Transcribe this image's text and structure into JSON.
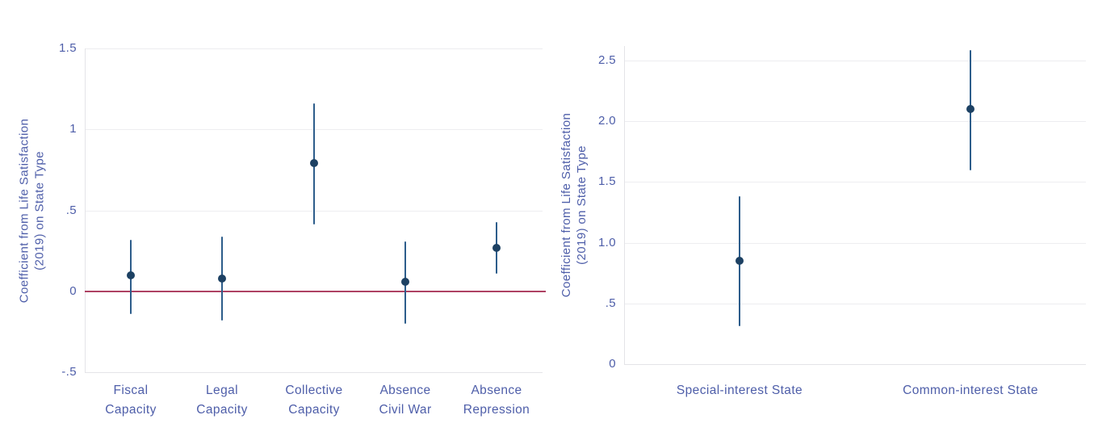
{
  "figure": {
    "background_color": "#ffffff"
  },
  "colors": {
    "label_text": "#4e5ea9",
    "point": "#1d4163",
    "ci_line": "#2d5d8b",
    "zero_line": "#ae4263",
    "gridline": "#ededf0",
    "axis_line": "#e4e4e8"
  },
  "chart_data": [
    {
      "type": "scatter",
      "subtype": "coefficient-plot-with-ci",
      "title": "",
      "ylabel": "Coefficient from Life Satisfaction (2019) on State Type",
      "ylabel_lines": [
        "Coefficient from Life Satisfaction",
        "(2019) on State Type"
      ],
      "categories": [
        "Fiscal Capacity",
        "Legal Capacity",
        "Collective Capacity",
        "Absence Civil War",
        "Absence Repression"
      ],
      "category_lines": [
        [
          "Fiscal",
          "Capacity"
        ],
        [
          "Legal",
          "Capacity"
        ],
        [
          "Collective",
          "Capacity"
        ],
        [
          "Absence",
          "Civil War"
        ],
        [
          "Absence",
          "Repression"
        ]
      ],
      "points": [
        0.1,
        0.08,
        0.79,
        0.06,
        0.27
      ],
      "ci_low": [
        -0.14,
        -0.18,
        0.41,
        -0.2,
        0.11
      ],
      "ci_high": [
        0.32,
        0.34,
        1.16,
        0.31,
        0.43
      ],
      "ylim": [
        -0.5,
        1.5
      ],
      "yticks": [
        {
          "value": 1.5,
          "label": "1.5"
        },
        {
          "value": 1.0,
          "label": "1"
        },
        {
          "value": 0.5,
          "label": ".5"
        },
        {
          "value": 0.0,
          "label": "0"
        },
        {
          "value": -0.5,
          "label": "-.5"
        }
      ],
      "gridlines_at": [
        1.5,
        1.0,
        0.5
      ],
      "zero_line": 0,
      "grid": "on",
      "legend": "none"
    },
    {
      "type": "scatter",
      "subtype": "coefficient-plot-with-ci",
      "title": "",
      "ylabel": "Coefficient from Life Satisfaction (2019) on State Type",
      "ylabel_lines": [
        "Coefficient from Life Satisfaction",
        "(2019) on State Type"
      ],
      "categories": [
        "Special-interest State",
        "Common-interest State"
      ],
      "category_lines": [
        [
          "Special-interest State"
        ],
        [
          "Common-interest State"
        ]
      ],
      "points": [
        0.85,
        2.1
      ],
      "ci_low": [
        0.31,
        1.6
      ],
      "ci_high": [
        1.38,
        2.59
      ],
      "ylim": [
        0,
        2.62
      ],
      "yticks": [
        {
          "value": 2.5,
          "label": "2.5"
        },
        {
          "value": 2.0,
          "label": "2.0"
        },
        {
          "value": 1.5,
          "label": "1.5"
        },
        {
          "value": 1.0,
          "label": "1.0"
        },
        {
          "value": 0.5,
          "label": ".5"
        },
        {
          "value": 0.0,
          "label": "0"
        }
      ],
      "gridlines_at": [
        2.5,
        2.0,
        1.5,
        1.0,
        0.5
      ],
      "zero_line": null,
      "grid": "on",
      "legend": "none"
    }
  ]
}
